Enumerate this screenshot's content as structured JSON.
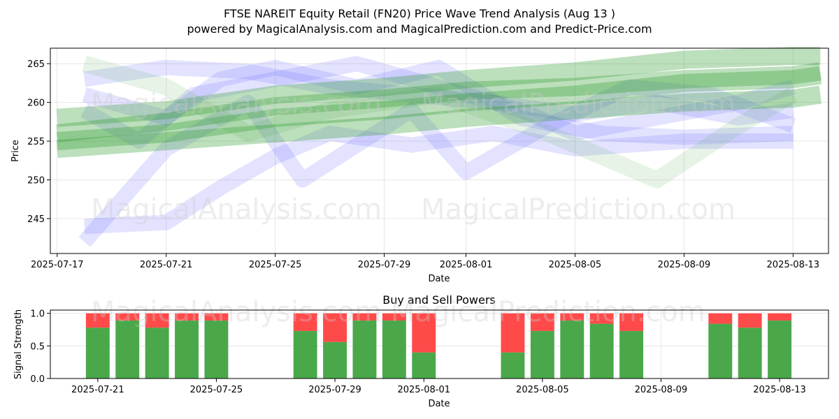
{
  "title_line1": "FTSE NAREIT Equity Retail (FN20) Price Wave Trend Analysis (Aug 13 )",
  "title_line2": "powered by MagicalAnalysis.com and MagicalPrediction.com and Predict-Price.com",
  "watermark": {
    "top_left": "MagicalAnalysis.com",
    "top_right": "MagicalPrediction.com",
    "middle_left": "MagicalAnalysis.com",
    "middle_right": "MagicalPrediction.com",
    "bottom": "MagicalAnalysis.com     MagicalPrediction.com"
  },
  "colors": {
    "blue_band": "#6666ff",
    "green_band": "#2e9a2e",
    "light_green_band": "#66b266",
    "buy": "#4aa84a",
    "sell": "#ff4a4a",
    "grid": "#e6e6e6"
  },
  "chart_data": [
    {
      "type": "line",
      "title": "",
      "xlabel": "Date",
      "ylabel": "Price",
      "x_ticks": [
        "2025-07-17",
        "2025-07-21",
        "2025-07-25",
        "2025-07-29",
        "2025-08-01",
        "2025-08-05",
        "2025-08-09",
        "2025-08-13"
      ],
      "y_ticks": [
        245,
        250,
        255,
        260,
        265
      ],
      "xlim": [
        "2025-07-17",
        "2025-08-14"
      ],
      "ylim": [
        240.5,
        267
      ],
      "grid": true,
      "series": [
        {
          "style": "blue",
          "x": [
            "2025-07-18",
            "2025-07-21",
            "2025-07-23",
            "2025-07-25",
            "2025-07-28",
            "2025-07-31",
            "2025-08-03",
            "2025-08-06",
            "2025-08-09",
            "2025-08-13"
          ],
          "y": [
            261,
            258,
            263,
            264.5,
            262,
            264.5,
            258,
            256,
            255.5,
            256
          ]
        },
        {
          "style": "blue",
          "x": [
            "2025-07-18",
            "2025-07-21",
            "2025-07-24",
            "2025-07-26",
            "2025-07-30",
            "2025-08-01",
            "2025-08-04",
            "2025-08-07",
            "2025-08-10",
            "2025-08-13"
          ],
          "y": [
            242,
            254,
            260,
            250,
            259,
            251,
            257,
            262,
            261,
            257
          ]
        },
        {
          "style": "blue",
          "x": [
            "2025-07-18",
            "2025-07-21",
            "2025-07-23",
            "2025-07-25",
            "2025-07-27",
            "2025-07-30",
            "2025-08-02",
            "2025-08-05",
            "2025-08-09",
            "2025-08-13"
          ],
          "y": [
            244,
            244.5,
            249,
            253,
            256,
            254.5,
            256,
            254,
            255,
            255
          ]
        },
        {
          "style": "blue",
          "x": [
            "2025-07-18",
            "2025-07-20",
            "2025-07-22",
            "2025-07-25",
            "2025-07-28",
            "2025-07-31",
            "2025-08-03",
            "2025-08-05",
            "2025-08-08",
            "2025-08-11",
            "2025-08-13"
          ],
          "y": [
            259,
            255,
            261,
            263,
            265,
            262,
            259,
            256,
            258,
            260,
            262
          ]
        },
        {
          "style": "blue",
          "x": [
            "2025-07-18",
            "2025-07-21",
            "2025-07-24",
            "2025-07-27",
            "2025-07-30",
            "2025-08-02",
            "2025-08-05",
            "2025-08-08",
            "2025-08-11",
            "2025-08-13"
          ],
          "y": [
            263,
            264.5,
            264,
            262,
            261,
            260,
            258.5,
            260,
            258,
            259
          ]
        },
        {
          "style": "light_green",
          "x": [
            "2025-07-18",
            "2025-07-21",
            "2025-07-24",
            "2025-07-27",
            "2025-07-31",
            "2025-08-04",
            "2025-08-08",
            "2025-08-11",
            "2025-08-13"
          ],
          "y": [
            265,
            262,
            256,
            259,
            261,
            256,
            250,
            257,
            261
          ]
        },
        {
          "style": "green",
          "x": [
            "2025-07-17",
            "2025-07-21",
            "2025-07-25",
            "2025-07-29",
            "2025-08-01",
            "2025-08-05",
            "2025-08-09",
            "2025-08-13",
            "2025-08-14"
          ],
          "y": [
            255,
            256,
            258,
            259,
            260,
            261,
            262.5,
            263,
            263.5
          ]
        },
        {
          "style": "green",
          "x": [
            "2025-07-17",
            "2025-07-21",
            "2025-07-25",
            "2025-07-29",
            "2025-08-01",
            "2025-08-05",
            "2025-08-09",
            "2025-08-13",
            "2025-08-14"
          ],
          "y": [
            258,
            259,
            261,
            262,
            263,
            264,
            265.5,
            266,
            266
          ]
        },
        {
          "style": "green",
          "x": [
            "2025-07-17",
            "2025-07-21",
            "2025-07-25",
            "2025-07-29",
            "2025-08-01",
            "2025-08-05",
            "2025-08-09",
            "2025-08-13",
            "2025-08-14"
          ],
          "y": [
            254,
            255,
            256,
            257,
            258,
            259,
            260,
            260.5,
            261
          ]
        },
        {
          "style": "green",
          "x": [
            "2025-07-17",
            "2025-07-21",
            "2025-07-25",
            "2025-07-29",
            "2025-08-01",
            "2025-08-05",
            "2025-08-09",
            "2025-08-13",
            "2025-08-14"
          ],
          "y": [
            256,
            257.5,
            259.5,
            260.5,
            261.5,
            262,
            263,
            263.5,
            264
          ]
        }
      ]
    },
    {
      "type": "bar",
      "title": "Buy and Sell Powers",
      "xlabel": "Date",
      "ylabel": "Signal Strength",
      "x_ticks": [
        "2025-07-21",
        "2025-07-25",
        "2025-07-29",
        "2025-08-01",
        "2025-08-05",
        "2025-08-09",
        "2025-08-13"
      ],
      "y_ticks": [
        "0.0",
        "0.5",
        "1.0"
      ],
      "xlim": [
        "2025-07-19",
        "2025-08-14"
      ],
      "ylim": [
        0,
        1.05
      ],
      "categories": [
        "2025-07-21",
        "2025-07-22",
        "2025-07-23",
        "2025-07-24",
        "2025-07-25",
        "2025-07-28",
        "2025-07-29",
        "2025-07-30",
        "2025-07-31",
        "2025-08-01",
        "2025-08-04",
        "2025-08-05",
        "2025-08-06",
        "2025-08-07",
        "2025-08-08",
        "2025-08-11",
        "2025-08-12",
        "2025-08-13"
      ],
      "series": [
        {
          "name": "Buy",
          "values": [
            0.78,
            0.89,
            0.78,
            0.89,
            0.89,
            0.73,
            0.56,
            0.89,
            0.89,
            0.4,
            0.4,
            0.73,
            0.89,
            0.84,
            0.73,
            0.84,
            0.78,
            0.89
          ]
        },
        {
          "name": "Sell",
          "values": [
            0.22,
            0.11,
            0.22,
            0.11,
            0.11,
            0.27,
            0.44,
            0.11,
            0.11,
            0.6,
            0.6,
            0.27,
            0.11,
            0.16,
            0.27,
            0.16,
            0.22,
            0.11
          ]
        }
      ]
    }
  ]
}
